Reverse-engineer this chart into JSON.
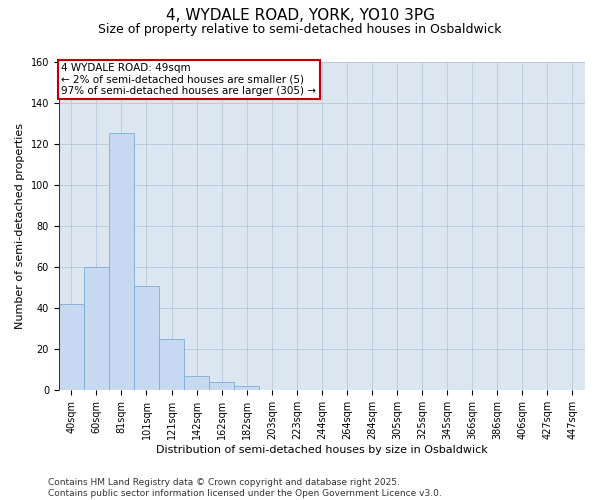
{
  "title": "4, WYDALE ROAD, YORK, YO10 3PG",
  "subtitle": "Size of property relative to semi-detached houses in Osbaldwick",
  "xlabel": "Distribution of semi-detached houses by size in Osbaldwick",
  "ylabel": "Number of semi-detached properties",
  "categories": [
    "40sqm",
    "60sqm",
    "81sqm",
    "101sqm",
    "121sqm",
    "142sqm",
    "162sqm",
    "182sqm",
    "203sqm",
    "223sqm",
    "244sqm",
    "264sqm",
    "284sqm",
    "305sqm",
    "325sqm",
    "345sqm",
    "366sqm",
    "386sqm",
    "406sqm",
    "427sqm",
    "447sqm"
  ],
  "values": [
    42,
    60,
    125,
    51,
    25,
    7,
    4,
    2,
    0,
    0,
    0,
    0,
    0,
    0,
    0,
    0,
    0,
    0,
    0,
    0,
    0
  ],
  "bar_color": "#c6d9f0",
  "bar_edge_color": "#7bafd4",
  "highlight_color": "#c00000",
  "annotation_text": "4 WYDALE ROAD: 49sqm\n← 2% of semi-detached houses are smaller (5)\n97% of semi-detached houses are larger (305) →",
  "annotation_box_color": "#c00000",
  "plot_bg_color": "#dce6f1",
  "ylim": [
    0,
    160
  ],
  "yticks": [
    0,
    20,
    40,
    60,
    80,
    100,
    120,
    140,
    160
  ],
  "footer": "Contains HM Land Registry data © Crown copyright and database right 2025.\nContains public sector information licensed under the Open Government Licence v3.0.",
  "background_color": "#ffffff",
  "grid_color": "#b8c8d8",
  "title_fontsize": 11,
  "subtitle_fontsize": 9,
  "axis_label_fontsize": 8,
  "tick_fontsize": 7,
  "annotation_fontsize": 7.5,
  "footer_fontsize": 6.5
}
